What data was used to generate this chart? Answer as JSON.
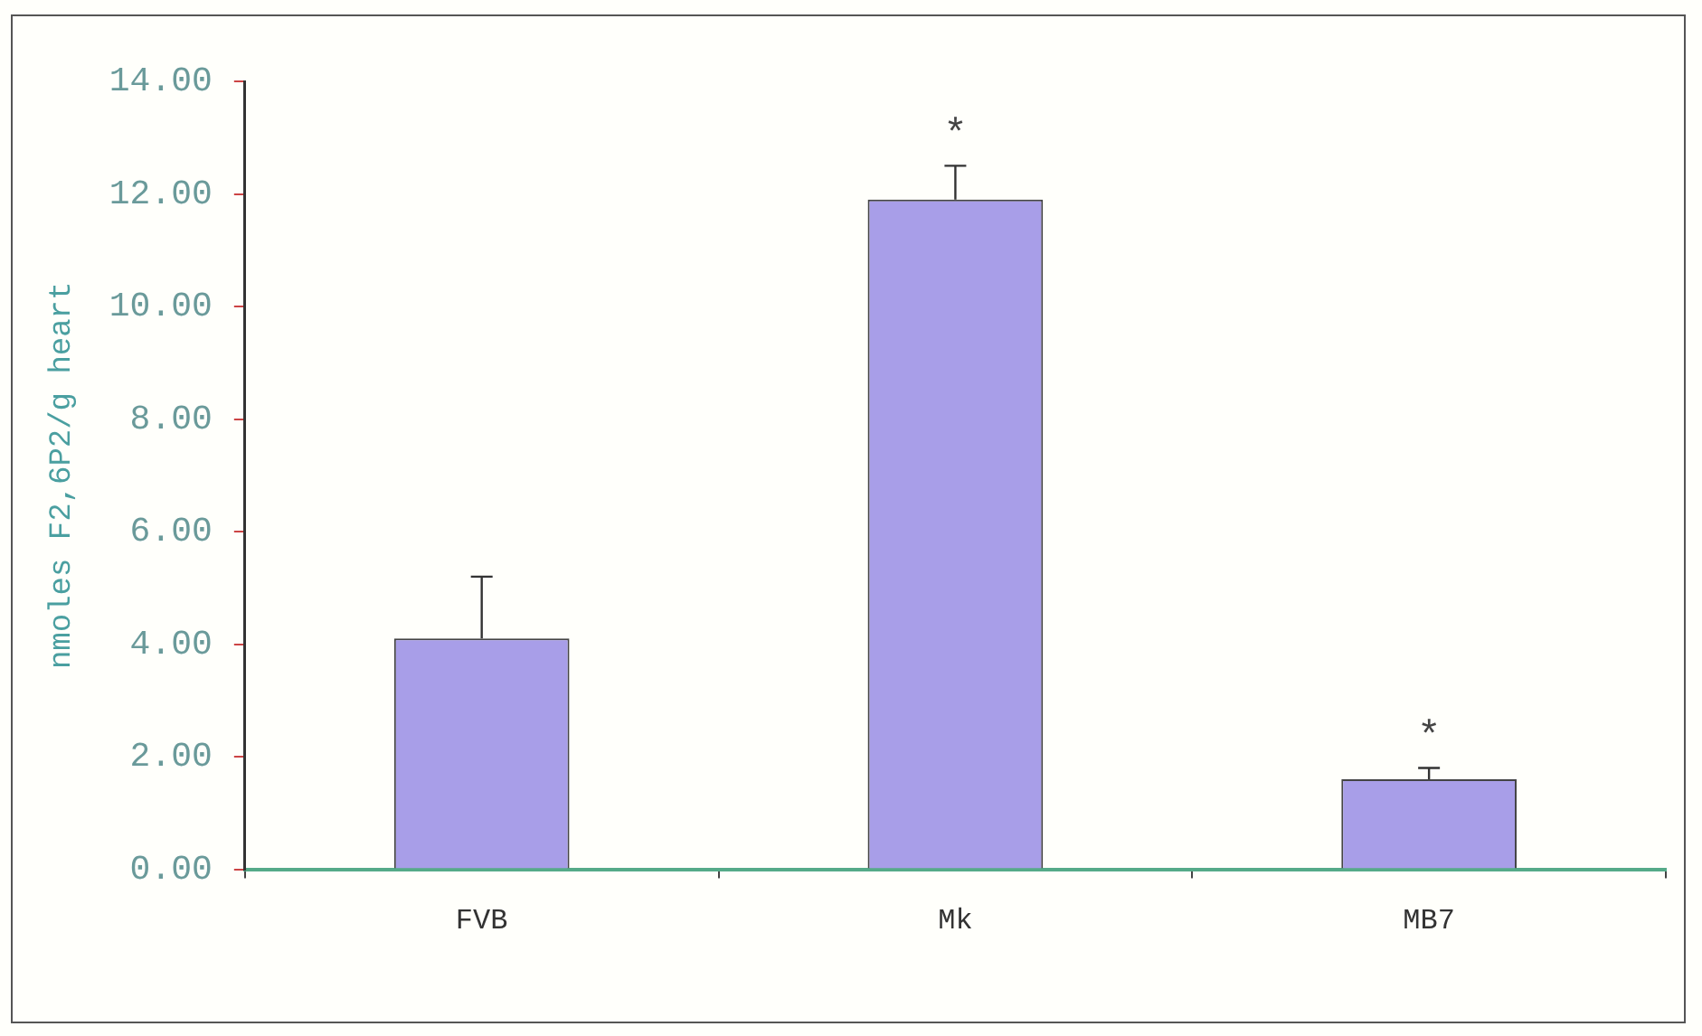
{
  "chart_data": {
    "type": "bar",
    "ylabel": "nmoles F2,6P2/g heart",
    "categories": [
      "FVB",
      "Mk",
      "MB7"
    ],
    "values": [
      4.1,
      11.9,
      1.6
    ],
    "errors": [
      [
        4.1,
        5.2
      ],
      [
        11.9,
        12.5
      ],
      [
        1.6,
        1.8
      ]
    ],
    "color": "#a89ee8",
    "ylim": [
      0,
      14
    ],
    "yticks": [
      {
        "value": 0,
        "label": "0.00"
      },
      {
        "value": 2,
        "label": "2.00"
      },
      {
        "value": 4,
        "label": "4.00"
      },
      {
        "value": 6,
        "label": "6.00"
      },
      {
        "value": 8,
        "label": "8.00"
      },
      {
        "value": 10,
        "label": "10.00"
      },
      {
        "value": 12,
        "label": "12.00"
      },
      {
        "value": 14,
        "label": "14.00"
      }
    ],
    "annotations": [
      {
        "text": "*",
        "x": "Mk",
        "y": 12.5
      },
      {
        "text": "*",
        "x": "MB7",
        "y": 1.8
      }
    ]
  }
}
